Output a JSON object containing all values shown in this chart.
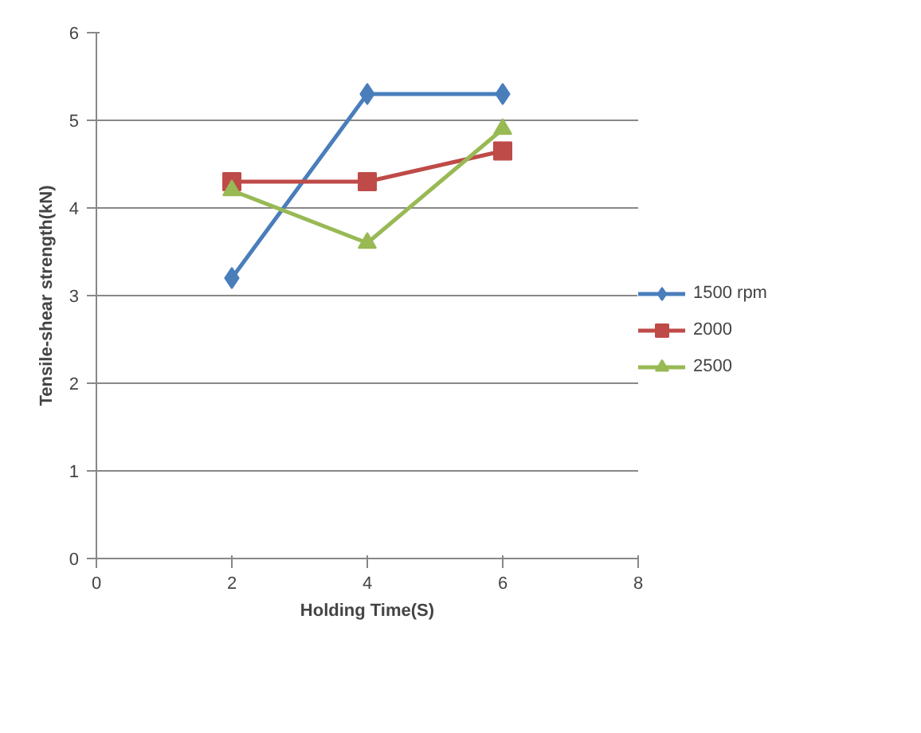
{
  "chart_data": {
    "type": "line",
    "xlabel": "Holding Time(S)",
    "ylabel": "Tensile-shear strength(kN)",
    "x": [
      2,
      4,
      6
    ],
    "xlim": [
      0,
      8
    ],
    "xticks": [
      0,
      2,
      4,
      6,
      8
    ],
    "ylim": [
      0,
      6
    ],
    "yticks": [
      0,
      1,
      2,
      3,
      4,
      5,
      6
    ],
    "grid": "y",
    "legend": "right",
    "series": [
      {
        "name": "1500 rpm",
        "color": "#4a7ebb",
        "marker": "diamond",
        "values": [
          3.2,
          5.3,
          5.3
        ]
      },
      {
        "name": "2000",
        "color": "#be4b48",
        "marker": "square",
        "values": [
          4.3,
          4.3,
          4.65
        ]
      },
      {
        "name": "2500",
        "color": "#98b954",
        "marker": "triangle",
        "values": [
          4.2,
          3.6,
          4.9
        ]
      }
    ]
  }
}
